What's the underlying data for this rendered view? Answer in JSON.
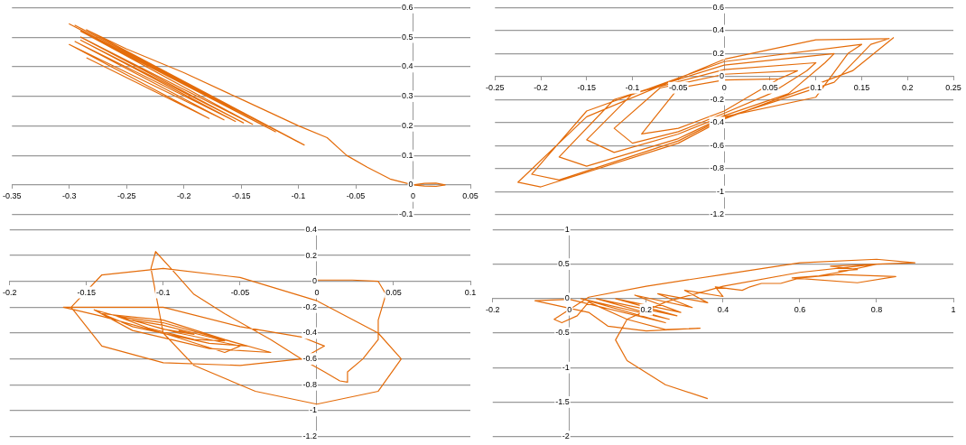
{
  "chart_data": [
    {
      "type": "line",
      "color": "#e46c0a",
      "marker": "none",
      "line_style": "solid",
      "grid": "y",
      "xlim": [
        -0.35,
        0.05
      ],
      "ylim": [
        -0.1,
        0.6
      ],
      "xticks": [
        -0.35,
        -0.3,
        -0.25,
        -0.2,
        -0.15,
        -0.1,
        -0.05,
        0,
        0.05
      ],
      "yticks": [
        -0.1,
        0,
        0.1,
        0.2,
        0.3,
        0.4,
        0.5,
        0.6
      ],
      "x": [
        0,
        0.01,
        0.02,
        0.028,
        0.02,
        0.01,
        0,
        -0.02,
        -0.04,
        -0.058,
        -0.075,
        -0.1,
        -0.15,
        -0.2,
        -0.25,
        -0.285,
        -0.095,
        -0.29,
        -0.1,
        -0.295,
        -0.11,
        -0.3,
        -0.12,
        -0.29,
        -0.13,
        -0.285,
        -0.14,
        -0.29,
        -0.148,
        -0.29,
        -0.155,
        -0.295,
        -0.165,
        -0.3,
        -0.178,
        -0.285
      ],
      "values": [
        0,
        0.005,
        0.006,
        0,
        -0.005,
        -0.004,
        0,
        0.02,
        0.06,
        0.1,
        0.16,
        0.2,
        0.29,
        0.38,
        0.46,
        0.525,
        0.135,
        0.53,
        0.145,
        0.54,
        0.165,
        0.545,
        0.18,
        0.52,
        0.2,
        0.51,
        0.205,
        0.5,
        0.21,
        0.49,
        0.215,
        0.485,
        0.22,
        0.475,
        0.225,
        0.43
      ]
    },
    {
      "type": "line",
      "color": "#e46c0a",
      "marker": "none",
      "line_style": "solid",
      "grid": "y",
      "xlim": [
        -0.25,
        0.25
      ],
      "ylim": [
        -1.2,
        0.6
      ],
      "xticks": [
        -0.25,
        -0.2,
        -0.15,
        -0.1,
        -0.05,
        0,
        0.05,
        0.1,
        0.15,
        0.2,
        0.25
      ],
      "yticks": [
        -1.2,
        -1,
        -0.8,
        -0.6,
        -0.4,
        -0.2,
        0,
        0.2,
        0.4,
        0.6
      ],
      "x": [
        0.06,
        0,
        -0.05,
        -0.09,
        -0.05,
        0,
        0.06,
        0.08,
        0,
        -0.07,
        -0.12,
        -0.1,
        -0.05,
        0,
        0.05,
        0.09,
        0.1,
        0,
        -0.1,
        -0.15,
        -0.12,
        -0.05,
        0,
        0.07,
        0.11,
        0.12,
        0,
        -0.12,
        -0.18,
        -0.15,
        -0.05,
        0,
        0.1,
        0.135,
        0.15,
        0,
        -0.15,
        -0.21,
        -0.18,
        -0.05,
        0,
        0.12,
        0.16,
        0.18,
        0.1,
        0,
        -0.15,
        -0.225,
        -0.2,
        -0.05,
        0,
        0.14,
        0.185
      ],
      "values": [
        -0.02,
        -0.03,
        -0.1,
        -0.5,
        -0.45,
        -0.3,
        -0.02,
        0.05,
        0.02,
        -0.1,
        -0.45,
        -0.58,
        -0.48,
        -0.32,
        -0.15,
        0.05,
        0.12,
        0.06,
        -0.15,
        -0.55,
        -0.66,
        -0.5,
        -0.34,
        -0.15,
        0.12,
        0.2,
        0.1,
        -0.2,
        -0.7,
        -0.78,
        -0.54,
        -0.35,
        -0.18,
        0.2,
        0.28,
        0.13,
        -0.3,
        -0.85,
        -0.9,
        -0.56,
        -0.36,
        -0.05,
        0.28,
        0.33,
        0.32,
        0.15,
        -0.35,
        -0.92,
        -0.96,
        -0.58,
        -0.37,
        0.05,
        0.34
      ]
    },
    {
      "type": "line",
      "color": "#e46c0a",
      "marker": "none",
      "line_style": "solid",
      "grid": "y",
      "xlim": [
        -0.2,
        0.1
      ],
      "ylim": [
        -1.2,
        0.4
      ],
      "xticks": [
        -0.2,
        -0.15,
        -0.1,
        -0.05,
        0,
        0.05,
        0.1
      ],
      "yticks": [
        -1.2,
        -1,
        -0.8,
        -0.6,
        -0.4,
        -0.2,
        0,
        0.2,
        0.4
      ],
      "x": [
        0,
        0.023,
        0.04,
        0.045,
        0.04,
        0.04,
        0.03,
        0.02,
        0.02,
        0.015,
        0.005,
        -0.01,
        -0.03,
        -0.06,
        -0.08,
        -0.095,
        -0.105,
        -0.108,
        -0.1,
        -0.08,
        -0.04,
        0,
        0.04,
        0.055,
        0.04,
        0,
        -0.05,
        -0.1,
        -0.14,
        -0.16,
        -0.14,
        -0.1,
        -0.05,
        -0.01,
        0.005,
        -0.01,
        -0.05,
        -0.1,
        -0.15,
        -0.165,
        -0.14,
        -0.1,
        -0.06,
        -0.05,
        -0.09,
        -0.145,
        -0.12,
        -0.07,
        -0.03,
        -0.06,
        -0.1,
        -0.14,
        -0.12,
        -0.07,
        -0.045,
        -0.07,
        -0.1,
        -0.13,
        -0.11,
        -0.08,
        -0.06,
        -0.08,
        -0.1,
        -0.12,
        -0.1,
        -0.08,
        -0.09
      ],
      "values": [
        0.01,
        0.01,
        0,
        -0.1,
        -0.3,
        -0.45,
        -0.6,
        -0.7,
        -0.78,
        -0.77,
        -0.7,
        -0.6,
        -0.45,
        -0.25,
        -0.1,
        0.1,
        0.23,
        0.1,
        -0.4,
        -0.65,
        -0.85,
        -0.95,
        -0.85,
        -0.6,
        -0.4,
        -0.15,
        0.03,
        0.1,
        0.05,
        -0.2,
        -0.5,
        -0.63,
        -0.65,
        -0.6,
        -0.5,
        -0.43,
        -0.35,
        -0.2,
        -0.2,
        -0.2,
        -0.27,
        -0.4,
        -0.55,
        -0.5,
        -0.4,
        -0.22,
        -0.38,
        -0.52,
        -0.55,
        -0.45,
        -0.3,
        -0.25,
        -0.35,
        -0.48,
        -0.5,
        -0.42,
        -0.32,
        -0.27,
        -0.36,
        -0.45,
        -0.46,
        -0.4,
        -0.34,
        -0.3,
        -0.37,
        -0.41,
        -0.38
      ]
    },
    {
      "type": "line",
      "color": "#e46c0a",
      "marker": "none",
      "line_style": "solid",
      "grid": "y",
      "xlim": [
        -0.2,
        1
      ],
      "ylim": [
        -2,
        1
      ],
      "xticks": [
        -0.2,
        0,
        0.2,
        0.4,
        0.6,
        0.8,
        1
      ],
      "yticks": [
        -2,
        -1.5,
        -1,
        -0.5,
        0,
        0.5,
        1
      ],
      "x": [
        0.36,
        0.25,
        0.15,
        0.12,
        0.15,
        0.25,
        0.4,
        0.6,
        0.8,
        0.9,
        0.8,
        0.6,
        0.4,
        0.2,
        0.05,
        -0.04,
        -0.02,
        0.02,
        0.05,
        0.15,
        0.25,
        0.34,
        0.2,
        0.1,
        0.05,
        -0.09,
        0,
        0.25,
        0.03,
        0.26,
        0.07,
        0.28,
        0.12,
        0.29,
        0.17,
        0.32,
        0.23,
        0.36,
        0.3,
        0.4,
        0.38,
        0.45,
        0.47,
        0.5,
        0.55,
        0.6,
        0.7,
        0.85,
        0.75,
        0.58,
        0.65,
        0.72,
        0.8,
        0.68,
        0.75,
        0.7
      ],
      "values": [
        -1.45,
        -1.25,
        -0.9,
        -0.6,
        -0.3,
        -0.05,
        0.18,
        0.38,
        0.5,
        0.52,
        0.57,
        0.52,
        0.35,
        0.18,
        0.02,
        -0.3,
        -0.35,
        -0.25,
        -0.05,
        -0.3,
        -0.45,
        -0.43,
        -0.47,
        -0.4,
        -0.2,
        -0.03,
        -0.01,
        -0.35,
        0,
        -0.3,
        0,
        -0.25,
        0,
        -0.2,
        0.05,
        -0.13,
        0.07,
        -0.06,
        0.12,
        0.03,
        0.17,
        0.12,
        0.17,
        0.22,
        0.22,
        0.3,
        0.35,
        0.32,
        0.23,
        0.3,
        0.33,
        0.4,
        0.5,
        0.47,
        0.42,
        0.4
      ]
    }
  ]
}
